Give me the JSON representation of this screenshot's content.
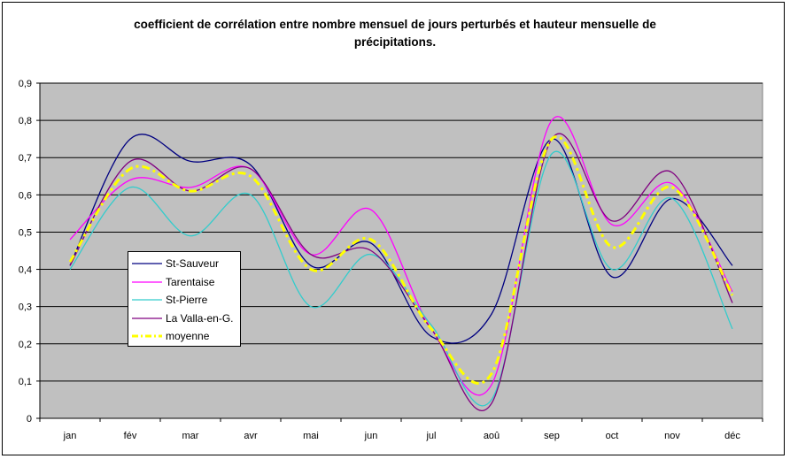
{
  "chart_data": {
    "type": "line",
    "title_lines": [
      "coefficient de corrélation entre nombre mensuel de jours perturbés et hauteur mensuelle de",
      "précipitations."
    ],
    "categories": [
      "jan",
      "fév",
      "mar",
      "avr",
      "mai",
      "jun",
      "jul",
      "aoû",
      "sep",
      "oct",
      "nov",
      "déc"
    ],
    "ylim": [
      0,
      0.9
    ],
    "yticks": [
      "0",
      "0,1",
      "0,2",
      "0,3",
      "0,4",
      "0,5",
      "0,6",
      "0,7",
      "0,8",
      "0,9"
    ],
    "grid": true,
    "plot_background": "#c0c0c0",
    "legend_position": "left",
    "series": [
      {
        "name": "St-Sauveur",
        "color": "#000080",
        "dash": "solid",
        "values": [
          0.41,
          0.75,
          0.69,
          0.68,
          0.41,
          0.47,
          0.22,
          0.28,
          0.75,
          0.38,
          0.59,
          0.41
        ]
      },
      {
        "name": "Tarentaise",
        "color": "#ff00ff",
        "dash": "solid",
        "values": [
          0.48,
          0.64,
          0.62,
          0.67,
          0.44,
          0.56,
          0.24,
          0.09,
          0.8,
          0.52,
          0.63,
          0.34
        ]
      },
      {
        "name": "St-Pierre",
        "color": "#33cccc",
        "dash": "solid",
        "values": [
          0.4,
          0.62,
          0.49,
          0.6,
          0.3,
          0.44,
          0.25,
          0.05,
          0.71,
          0.4,
          0.59,
          0.24
        ]
      },
      {
        "name": "La Valla-en-G.",
        "color": "#800080",
        "dash": "solid",
        "values": [
          0.41,
          0.69,
          0.61,
          0.67,
          0.44,
          0.45,
          0.24,
          0.04,
          0.75,
          0.53,
          0.66,
          0.31
        ]
      },
      {
        "name": "moyenne",
        "color": "#ffff00",
        "dash": "dashdot",
        "values": [
          0.42,
          0.67,
          0.61,
          0.65,
          0.4,
          0.48,
          0.24,
          0.12,
          0.75,
          0.46,
          0.62,
          0.33
        ]
      }
    ]
  }
}
